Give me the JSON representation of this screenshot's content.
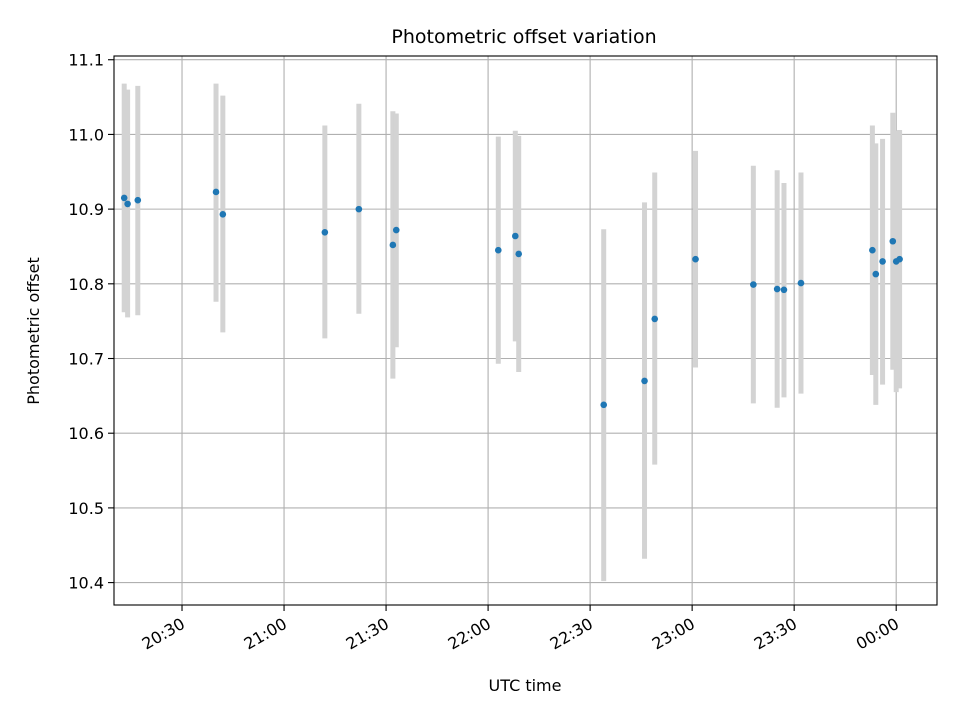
{
  "chart_data": {
    "type": "scatter",
    "title": "Photometric offset variation",
    "xlabel": "UTC time",
    "ylabel": "Photometric offset",
    "grid": true,
    "x_axis_kind": "time",
    "xlim": [
      "20:10",
      "00:12"
    ],
    "ylim": [
      10.37,
      11.105
    ],
    "y_ticks": [
      10.4,
      10.5,
      10.6,
      10.7,
      10.8,
      10.9,
      11.0,
      11.1
    ],
    "y_tick_labels": [
      "10.4",
      "10.5",
      "10.6",
      "10.7",
      "10.8",
      "10.9",
      "11.0",
      "11.1"
    ],
    "x_ticks": [
      "20:30",
      "21:00",
      "21:30",
      "22:00",
      "22:30",
      "23:00",
      "23:30",
      "00:00"
    ],
    "x_tick_labels": [
      "20:30",
      "21:00",
      "21:30",
      "22:00",
      "22:30",
      "23:00",
      "23:30",
      "00:00"
    ],
    "colors": {
      "marker": "#1f77b4",
      "errorbar": "#d3d3d3",
      "grid": "#b0b0b0"
    },
    "points": [
      {
        "t": "20:13",
        "y": 10.915,
        "lo": 10.762,
        "hi": 11.068
      },
      {
        "t": "20:14",
        "y": 10.907,
        "lo": 10.755,
        "hi": 11.06
      },
      {
        "t": "20:17",
        "y": 10.912,
        "lo": 10.758,
        "hi": 11.065
      },
      {
        "t": "20:40",
        "y": 10.923,
        "lo": 10.776,
        "hi": 11.068
      },
      {
        "t": "20:42",
        "y": 10.893,
        "lo": 10.735,
        "hi": 11.052
      },
      {
        "t": "21:12",
        "y": 10.869,
        "lo": 10.727,
        "hi": 11.012
      },
      {
        "t": "21:22",
        "y": 10.9,
        "lo": 10.76,
        "hi": 11.041
      },
      {
        "t": "21:32",
        "y": 10.852,
        "lo": 10.673,
        "hi": 11.031
      },
      {
        "t": "21:33",
        "y": 10.872,
        "lo": 10.715,
        "hi": 11.028
      },
      {
        "t": "22:03",
        "y": 10.845,
        "lo": 10.693,
        "hi": 10.997
      },
      {
        "t": "22:08",
        "y": 10.864,
        "lo": 10.723,
        "hi": 11.005
      },
      {
        "t": "22:09",
        "y": 10.84,
        "lo": 10.682,
        "hi": 10.998
      },
      {
        "t": "22:34",
        "y": 10.638,
        "lo": 10.402,
        "hi": 10.873
      },
      {
        "t": "22:46",
        "y": 10.67,
        "lo": 10.432,
        "hi": 10.909
      },
      {
        "t": "22:49",
        "y": 10.753,
        "lo": 10.558,
        "hi": 10.949
      },
      {
        "t": "23:01",
        "y": 10.833,
        "lo": 10.688,
        "hi": 10.978
      },
      {
        "t": "23:18",
        "y": 10.799,
        "lo": 10.64,
        "hi": 10.958
      },
      {
        "t": "23:25",
        "y": 10.793,
        "lo": 10.634,
        "hi": 10.952
      },
      {
        "t": "23:27",
        "y": 10.792,
        "lo": 10.648,
        "hi": 10.935
      },
      {
        "t": "23:32",
        "y": 10.801,
        "lo": 10.653,
        "hi": 10.949
      },
      {
        "t": "23:53",
        "y": 10.845,
        "lo": 10.678,
        "hi": 11.012
      },
      {
        "t": "23:54",
        "y": 10.813,
        "lo": 10.638,
        "hi": 10.988
      },
      {
        "t": "23:56",
        "y": 10.83,
        "lo": 10.665,
        "hi": 10.994
      },
      {
        "t": "23:59",
        "y": 10.857,
        "lo": 10.685,
        "hi": 11.029
      },
      {
        "t": "00:00",
        "y": 10.83,
        "lo": 10.655,
        "hi": 11.005
      },
      {
        "t": "00:01",
        "y": 10.833,
        "lo": 10.66,
        "hi": 11.006
      }
    ]
  }
}
